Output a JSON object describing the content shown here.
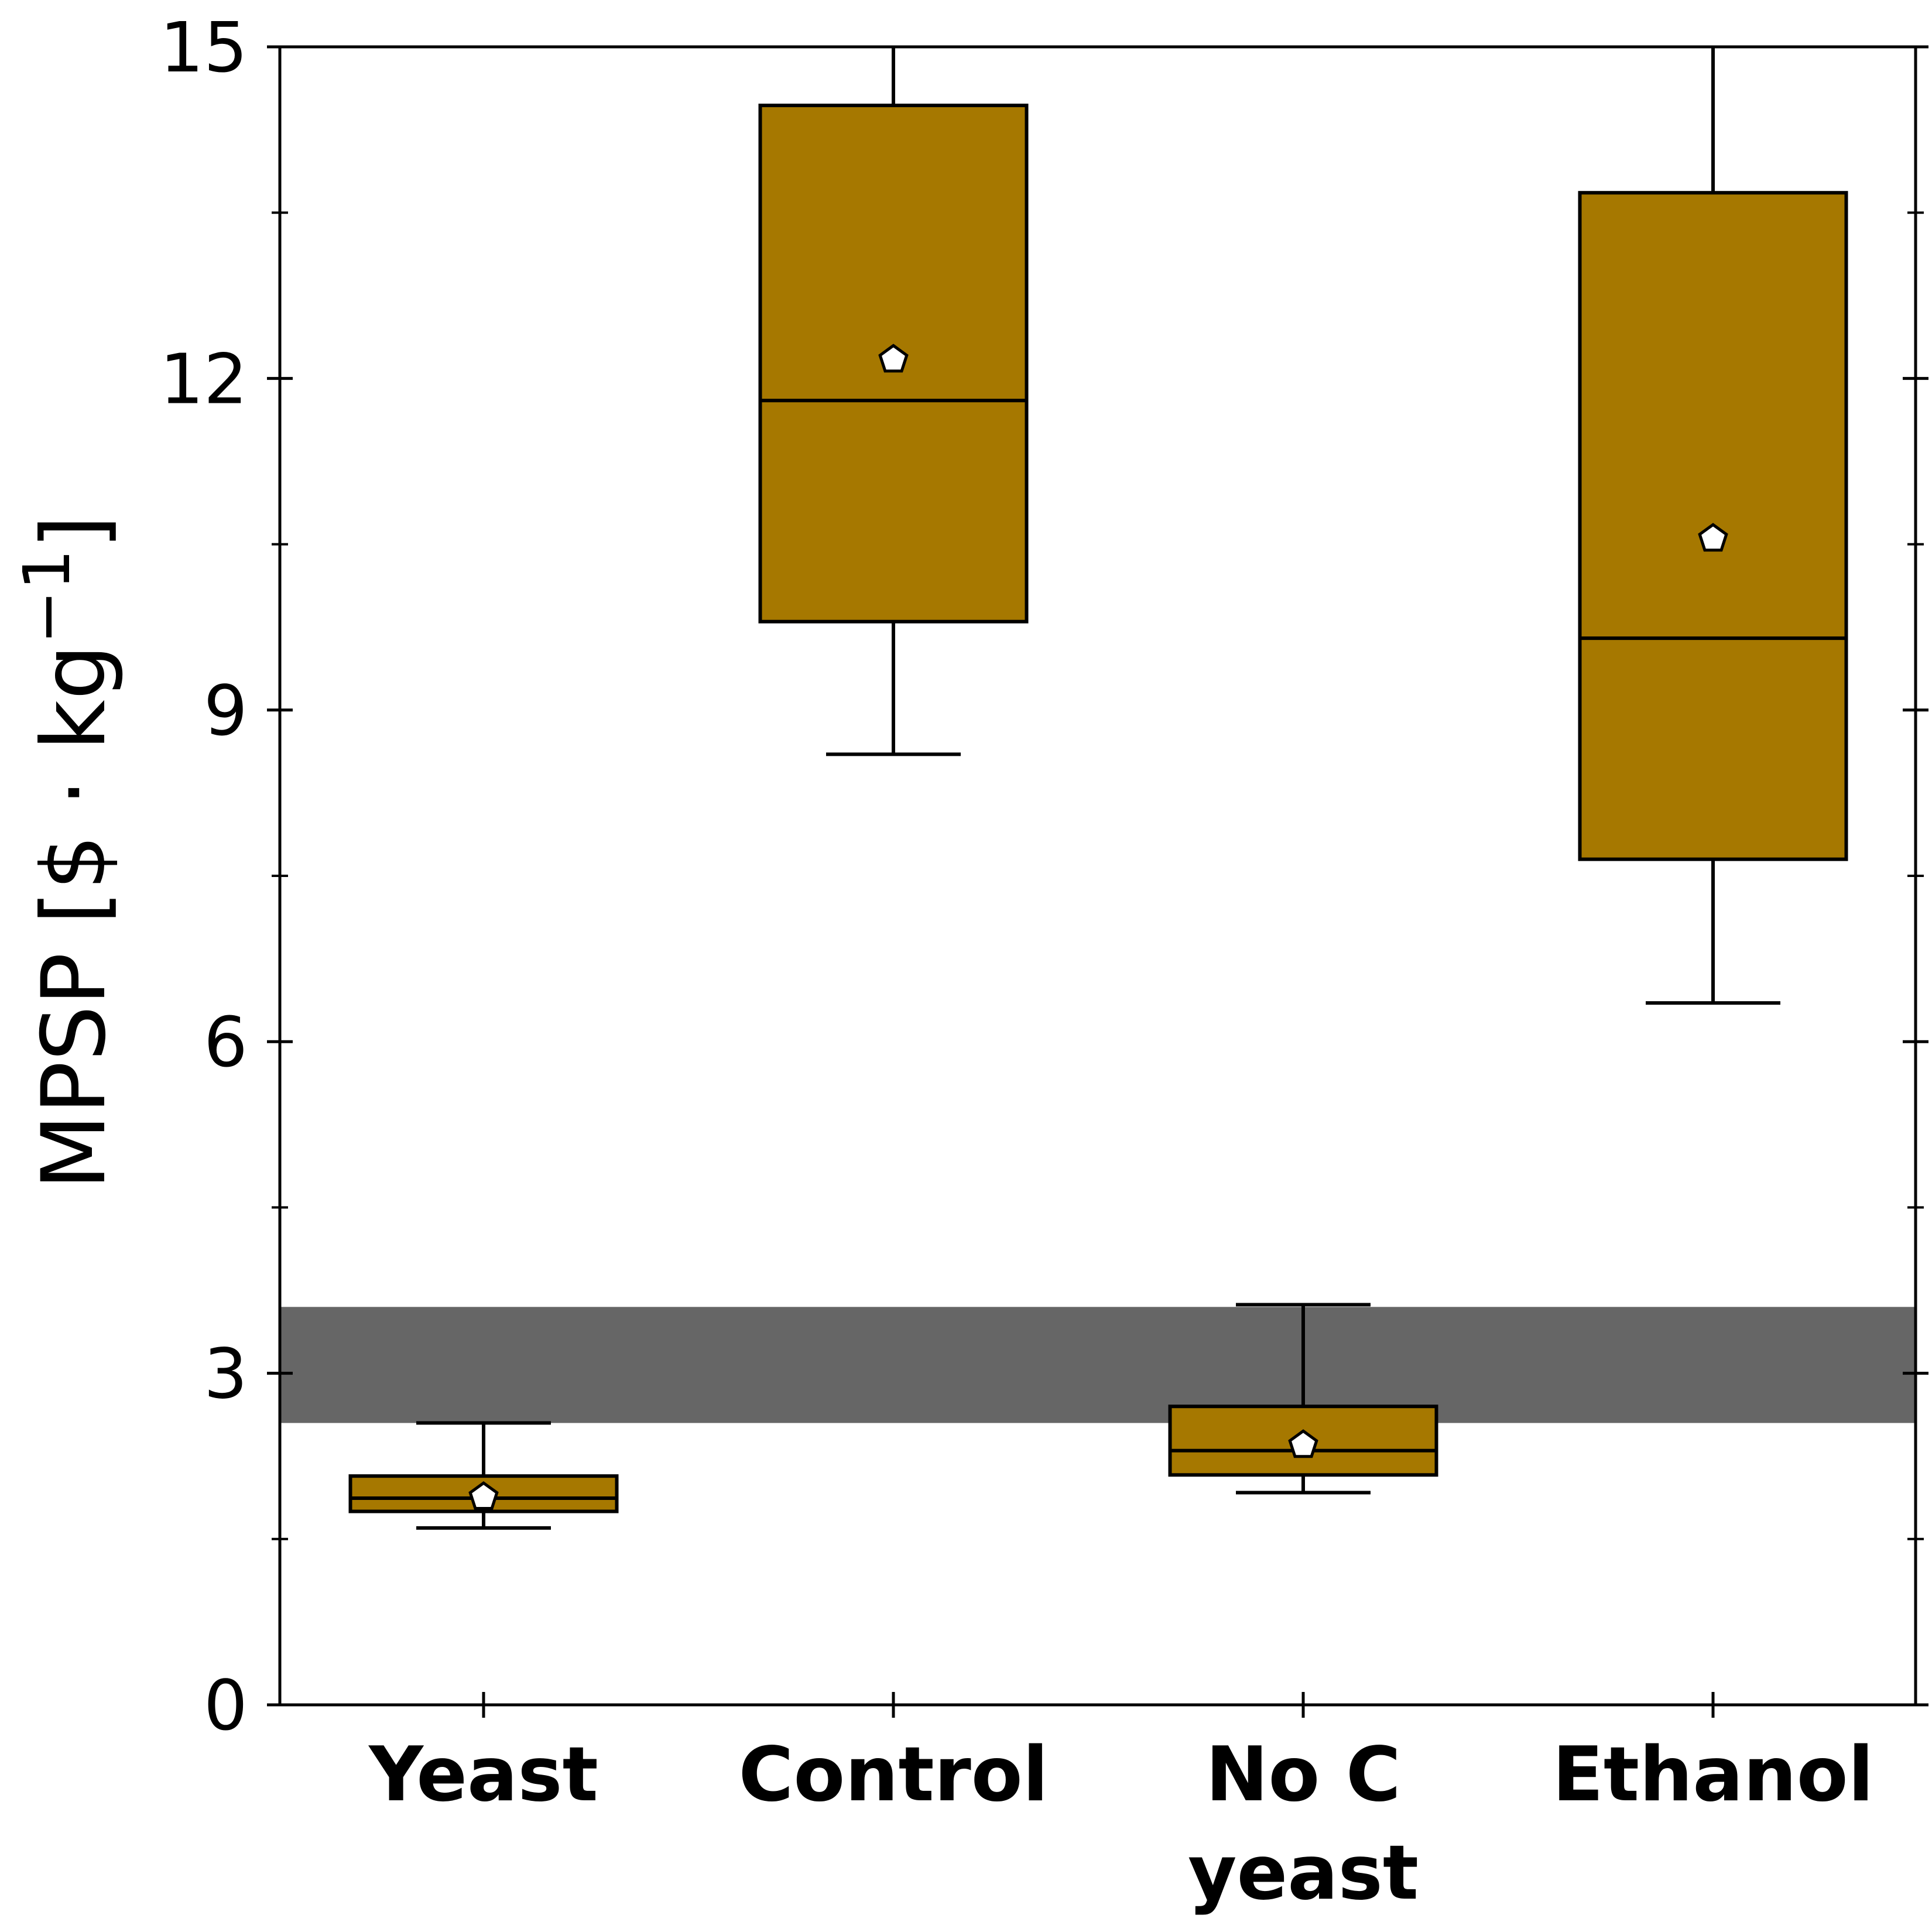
{
  "chart_data": {
    "type": "box",
    "ylabel": "MPSP [$ · kg",
    "ylabel_superscript": "−1",
    "ylabel_close": "]",
    "xlabel": "",
    "ylim": [
      0,
      15
    ],
    "yticks": [
      0,
      3,
      6,
      9,
      12,
      15
    ],
    "yticks_minor": [
      1.5,
      4.5,
      7.5,
      10.5,
      13.5
    ],
    "grid": false,
    "box_color": "#A67800",
    "edge_color": "#000000",
    "band_color": "#666666",
    "mean_marker_color": "#ffffff",
    "mean_marker": "pentagon",
    "reference_band": {
      "low": 2.55,
      "high": 3.6
    },
    "categories": [
      {
        "lines": [
          "Yeast"
        ]
      },
      {
        "lines": [
          "Control"
        ]
      },
      {
        "lines": [
          "No C",
          "yeast"
        ]
      },
      {
        "lines": [
          "Ethanol"
        ]
      }
    ],
    "boxes": [
      {
        "category": "Yeast",
        "whisker_low": 1.6,
        "q1": 1.75,
        "median": 1.87,
        "q3": 2.07,
        "whisker_high": 2.55,
        "mean": 1.88
      },
      {
        "category": "Control",
        "whisker_low": 8.6,
        "q1": 9.8,
        "median": 11.8,
        "q3": 14.47,
        "whisker_high": 15.0,
        "mean": 12.17
      },
      {
        "category": "No C yeast",
        "whisker_low": 1.92,
        "q1": 2.08,
        "median": 2.3,
        "q3": 2.7,
        "whisker_high": 3.62,
        "mean": 2.35
      },
      {
        "category": "Ethanol",
        "whisker_low": 6.35,
        "q1": 7.65,
        "median": 9.65,
        "q3": 13.68,
        "whisker_high": 15.0,
        "mean": 10.55
      }
    ]
  }
}
